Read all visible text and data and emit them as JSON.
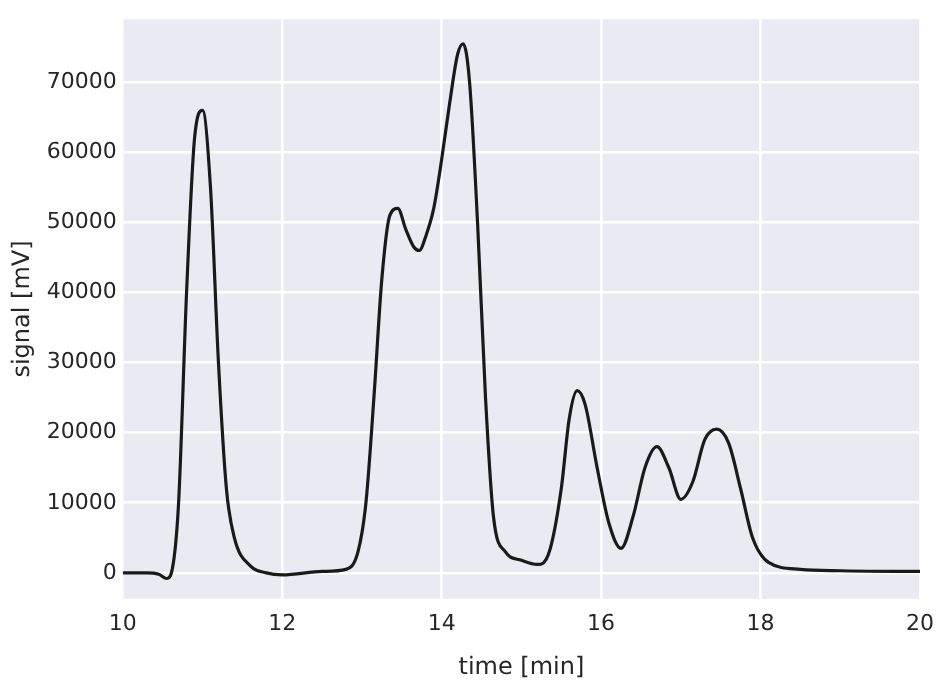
{
  "chart_data": {
    "type": "line",
    "xlabel": "time [min]",
    "ylabel": "signal [mV]",
    "xlim": [
      10,
      20
    ],
    "xticks": [
      10,
      12,
      14,
      16,
      18,
      20
    ],
    "ylim": [
      -3700,
      79000
    ],
    "yticks": [
      0,
      10000,
      20000,
      30000,
      40000,
      50000,
      60000,
      70000
    ],
    "grid": true,
    "marker": "none",
    "line_style": "solid",
    "series": [
      {
        "color": "#1a1a1a",
        "x": [
          10,
          10.3,
          10.45,
          10.55,
          10.62,
          10.7,
          10.8,
          10.9,
          11,
          11.1,
          11.2,
          11.3,
          11.4,
          11.6,
          11.8,
          12,
          12.5,
          12.8,
          12.95,
          13.05,
          13.15,
          13.25,
          13.35,
          13.45,
          13.55,
          13.65,
          13.72,
          13.8,
          13.9,
          14,
          14.1,
          14.2,
          14.27,
          14.35,
          14.45,
          14.55,
          14.65,
          14.8,
          15,
          15.2,
          15.35,
          15.5,
          15.6,
          15.7,
          15.8,
          15.95,
          16.1,
          16.25,
          16.4,
          16.55,
          16.7,
          16.85,
          17,
          17.15,
          17.3,
          17.45,
          17.6,
          17.75,
          17.9,
          18.1,
          18.5,
          19,
          20
        ],
        "values": [
          0,
          0,
          -200,
          -800,
          500,
          10000,
          40000,
          62000,
          66000,
          55000,
          30000,
          12000,
          5000,
          1000,
          0,
          -300,
          200,
          500,
          3000,
          10000,
          25000,
          42000,
          51000,
          52000,
          49000,
          46500,
          46000,
          48000,
          52000,
          59000,
          67000,
          74000,
          75500,
          70000,
          50000,
          25000,
          8000,
          3000,
          1800,
          1200,
          3000,
          12000,
          22000,
          26000,
          24000,
          15000,
          7000,
          3500,
          8000,
          15000,
          18000,
          15000,
          10500,
          13000,
          19000,
          20500,
          18500,
          12000,
          5000,
          1500,
          500,
          300,
          200
        ]
      }
    ]
  }
}
